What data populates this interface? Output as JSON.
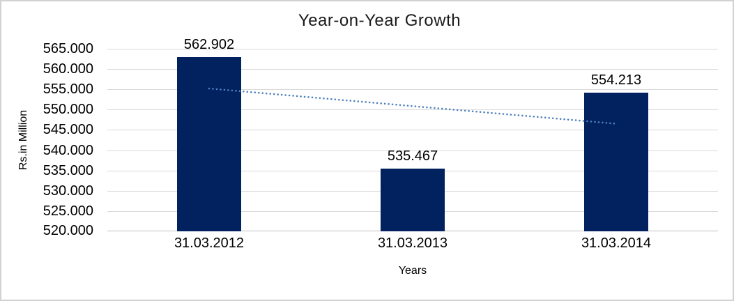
{
  "chart_data": {
    "type": "bar",
    "title": "Year-on-Year Growth",
    "categories": [
      "31.03.2012",
      "31.03.2013",
      "31.03.2014"
    ],
    "values": [
      562.902,
      535.467,
      554.213
    ],
    "data_labels": [
      "562.902",
      "535.467",
      "554.213"
    ],
    "xlabel": "Years",
    "ylabel": "Rs.in Million",
    "ylim": [
      520,
      565
    ],
    "ytick_step": 5,
    "ytick_labels": [
      "565.000",
      "560.000",
      "555.000",
      "550.000",
      "545.000",
      "540.000",
      "535.000",
      "530.000",
      "525.000",
      "520.000"
    ],
    "grid": true,
    "legend": "none",
    "trendline": {
      "type": "linear",
      "style": "dotted",
      "start_value": 555.206,
      "end_value": 546.517
    },
    "colors": {
      "bar": "#01215f",
      "trendline": "#4e81bd",
      "gridline": "#d9d9d9",
      "axis_line": "#bfbfbf",
      "frame_border": "#d2d2d2",
      "text": "#000000"
    }
  }
}
